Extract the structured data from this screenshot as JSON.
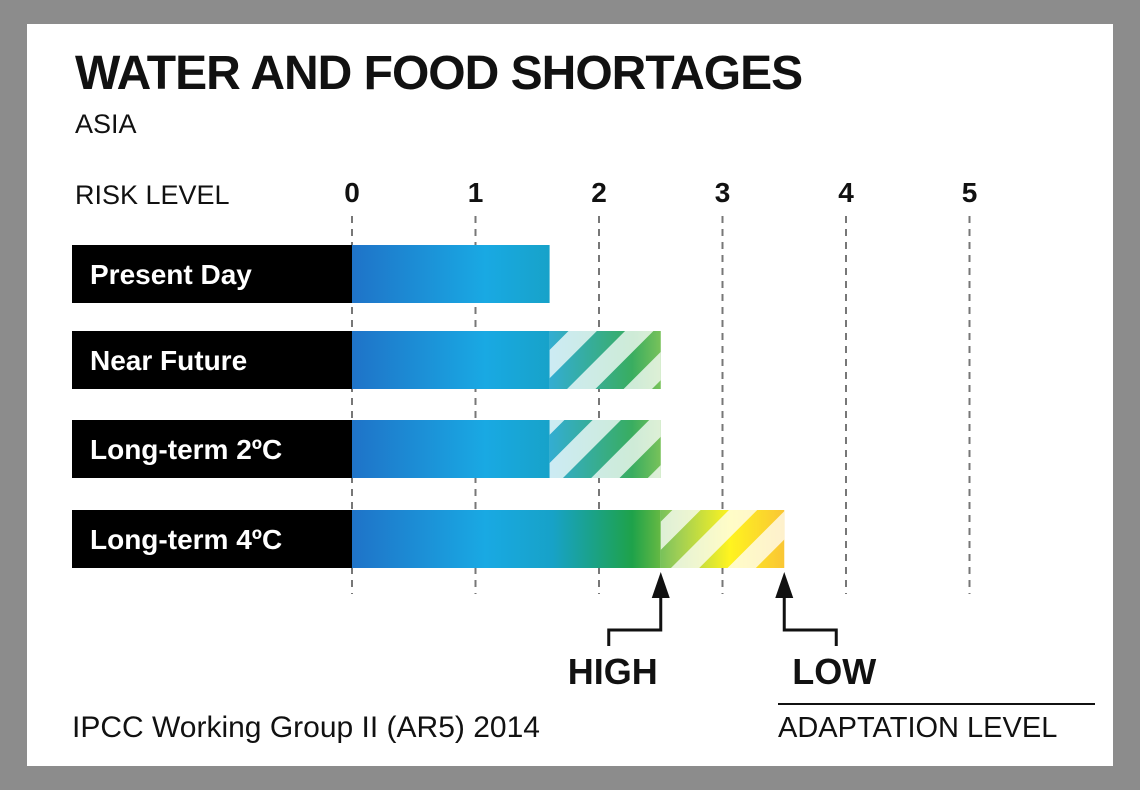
{
  "colors": {
    "frame": "#8c8c8c",
    "background": "#ffffff",
    "label_box": "#000000",
    "blue_dark": "#1f73c8",
    "blue_light": "#19a9e3",
    "green": "#1ea24a",
    "lime": "#8dc63f",
    "yellow": "#fff200",
    "orange": "#f7b21e"
  },
  "header": {
    "title": "WATER  AND FOOD SHORTAGES",
    "subtitle": "ASIA"
  },
  "axis": {
    "label": "RISK LEVEL"
  },
  "footer": {
    "source": "IPCC Working Group II (AR5) 2014",
    "adaptation_title": "ADAPTATION  LEVEL"
  },
  "chart_data": {
    "type": "bar",
    "orientation": "horizontal",
    "title": "WATER  AND FOOD SHORTAGES",
    "subtitle": "ASIA",
    "xlabel": "RISK LEVEL",
    "xlim": [
      0,
      5
    ],
    "ticks": [
      "0",
      "1",
      "2",
      "3",
      "4",
      "5"
    ],
    "grid": "vertical dashed lines at each tick",
    "categories": [
      "Present Day",
      "Near Future",
      "Long-term 2ºC",
      "Long-term 4ºC"
    ],
    "series": [
      {
        "name": "HIGH",
        "values": [
          1.6,
          1.6,
          1.6,
          2.5
        ]
      },
      {
        "name": "LOW",
        "values": [
          1.6,
          2.5,
          2.5,
          3.5
        ]
      }
    ],
    "adaptation_legend": {
      "title": "ADAPTATION  LEVEL",
      "markers": [
        {
          "label": "HIGH",
          "value": 2.5
        },
        {
          "label": "LOW",
          "value": 3.5
        }
      ],
      "note": "solid bar = risk with high adaptation; hatched extension = additional risk with low adaptation"
    }
  }
}
